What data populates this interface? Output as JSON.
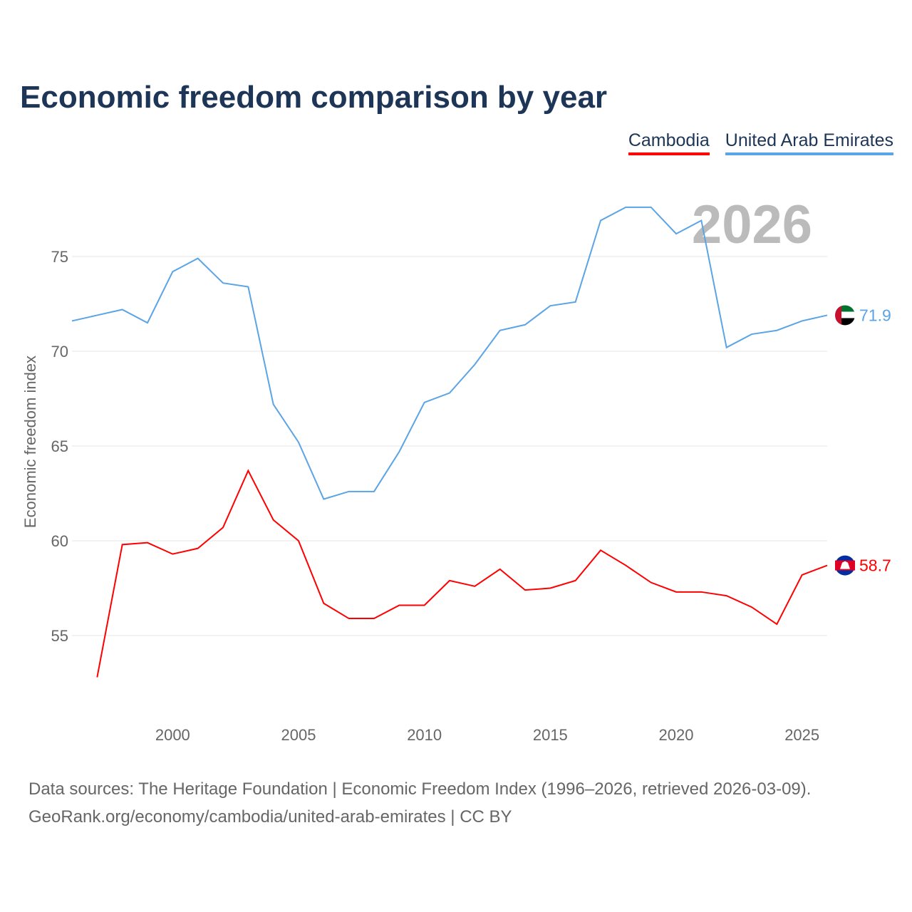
{
  "chart_data": {
    "type": "line",
    "title": "Economic freedom comparison by year",
    "xlabel": "",
    "ylabel": "Economic freedom index",
    "xlim": [
      1996,
      2026
    ],
    "ylim": [
      50.5,
      78.5
    ],
    "yticks": [
      55,
      60,
      65,
      70,
      75
    ],
    "xticks": [
      2000,
      2005,
      2010,
      2015,
      2020,
      2025
    ],
    "grid": true,
    "legend": "top-right",
    "year_label": "2026",
    "series": [
      {
        "name": "Cambodia",
        "color": "#ff0000",
        "end_label": "58.7",
        "flag": "cambodia-flag",
        "x": [
          1997,
          1998,
          1999,
          2000,
          2001,
          2002,
          2003,
          2004,
          2005,
          2006,
          2007,
          2008,
          2009,
          2010,
          2011,
          2012,
          2013,
          2014,
          2015,
          2016,
          2017,
          2018,
          2019,
          2020,
          2021,
          2022,
          2023,
          2024,
          2025,
          2026
        ],
        "values": [
          52.8,
          59.8,
          59.9,
          59.3,
          59.6,
          60.7,
          63.7,
          61.1,
          60.0,
          56.7,
          55.9,
          55.9,
          56.6,
          56.6,
          57.9,
          57.6,
          58.5,
          57.4,
          57.5,
          57.9,
          59.5,
          58.7,
          57.8,
          57.3,
          57.3,
          57.1,
          56.5,
          55.6,
          58.2,
          58.7
        ]
      },
      {
        "name": "United Arab Emirates",
        "color": "#5ba4e5",
        "end_label": "71.9",
        "flag": "uae-flag",
        "x": [
          1996,
          1997,
          1998,
          1999,
          2000,
          2001,
          2002,
          2003,
          2004,
          2005,
          2006,
          2007,
          2008,
          2009,
          2010,
          2011,
          2012,
          2013,
          2014,
          2015,
          2016,
          2017,
          2018,
          2019,
          2020,
          2021,
          2022,
          2023,
          2024,
          2025,
          2026
        ],
        "values": [
          71.6,
          71.9,
          72.2,
          71.5,
          74.2,
          74.9,
          73.6,
          73.4,
          67.2,
          65.2,
          62.2,
          62.6,
          62.6,
          64.7,
          67.3,
          67.8,
          69.3,
          71.1,
          71.4,
          72.4,
          72.6,
          76.9,
          77.6,
          77.6,
          76.2,
          76.9,
          70.2,
          70.9,
          71.1,
          71.6,
          71.9
        ]
      }
    ]
  },
  "footer": {
    "line1": "Data sources: The Heritage Foundation | Economic Freedom Index (1996–2026, retrieved 2026-03-09).",
    "line2": "GeoRank.org/economy/cambodia/united-arab-emirates | CC BY"
  }
}
